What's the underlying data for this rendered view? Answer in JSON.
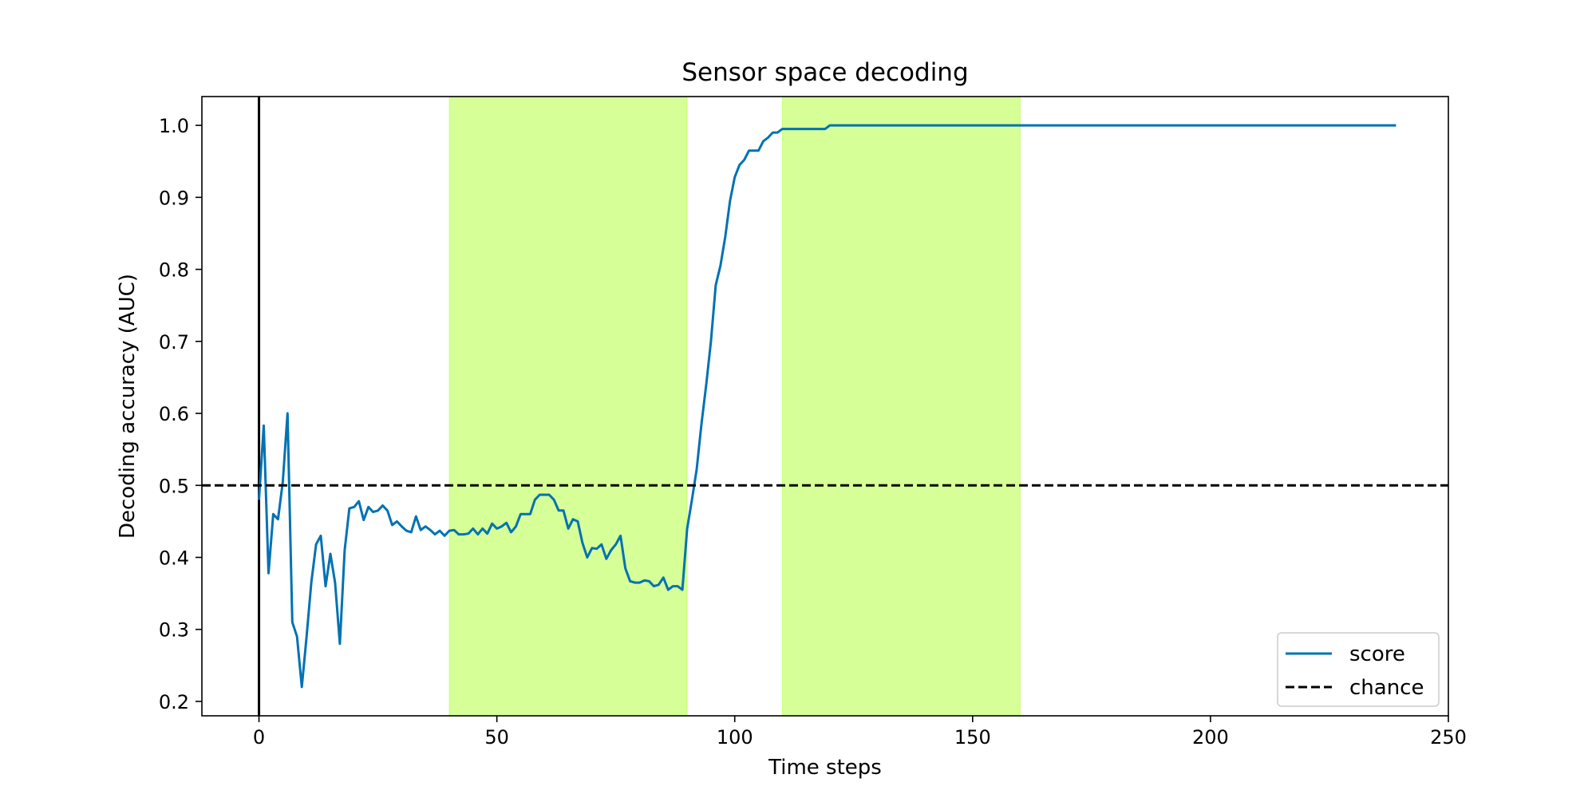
{
  "chart_data": {
    "type": "line",
    "title": "Sensor space decoding",
    "xlabel": "Time steps",
    "ylabel": "Decoding accuracy (AUC)",
    "xlim": [
      -12,
      250
    ],
    "ylim": [
      0.18,
      1.04
    ],
    "xticks": [
      0,
      50,
      100,
      150,
      200,
      250
    ],
    "yticks": [
      0.2,
      0.3,
      0.4,
      0.5,
      0.6,
      0.7,
      0.8,
      0.9,
      1.0
    ],
    "grid": false,
    "legend_position": "lower right",
    "shaded_regions": [
      [
        40,
        90
      ],
      [
        110,
        160
      ]
    ],
    "vertical_line_x": 0,
    "series": [
      {
        "name": "score",
        "color": "#0072b2",
        "style": "solid",
        "x": [
          0,
          1,
          2,
          3,
          4,
          5,
          6,
          7,
          8,
          9,
          10,
          11,
          12,
          13,
          14,
          15,
          16,
          17,
          18,
          19,
          20,
          21,
          22,
          23,
          24,
          25,
          26,
          27,
          28,
          29,
          30,
          31,
          32,
          33,
          34,
          35,
          36,
          37,
          38,
          39,
          40,
          41,
          42,
          43,
          44,
          45,
          46,
          47,
          48,
          49,
          50,
          51,
          52,
          53,
          54,
          55,
          56,
          57,
          58,
          59,
          60,
          61,
          62,
          63,
          64,
          65,
          66,
          67,
          68,
          69,
          70,
          71,
          72,
          73,
          74,
          75,
          76,
          77,
          78,
          79,
          80,
          81,
          82,
          83,
          84,
          85,
          86,
          87,
          88,
          89,
          90,
          91,
          92,
          93,
          94,
          95,
          96,
          97,
          98,
          99,
          100,
          101,
          102,
          103,
          104,
          105,
          106,
          107,
          108,
          109,
          110,
          115,
          119,
          120,
          239
        ],
        "y": [
          0.48,
          0.583,
          0.378,
          0.46,
          0.453,
          0.505,
          0.6,
          0.31,
          0.29,
          0.22,
          0.29,
          0.365,
          0.418,
          0.43,
          0.36,
          0.405,
          0.365,
          0.28,
          0.41,
          0.468,
          0.47,
          0.478,
          0.452,
          0.47,
          0.463,
          0.465,
          0.472,
          0.465,
          0.445,
          0.45,
          0.443,
          0.437,
          0.435,
          0.457,
          0.438,
          0.443,
          0.438,
          0.432,
          0.437,
          0.43,
          0.437,
          0.438,
          0.432,
          0.432,
          0.433,
          0.44,
          0.432,
          0.44,
          0.433,
          0.447,
          0.44,
          0.443,
          0.448,
          0.435,
          0.443,
          0.46,
          0.46,
          0.46,
          0.48,
          0.487,
          0.487,
          0.487,
          0.48,
          0.465,
          0.465,
          0.44,
          0.453,
          0.45,
          0.42,
          0.4,
          0.413,
          0.412,
          0.418,
          0.398,
          0.41,
          0.418,
          0.43,
          0.385,
          0.367,
          0.365,
          0.365,
          0.368,
          0.367,
          0.36,
          0.362,
          0.372,
          0.355,
          0.36,
          0.36,
          0.355,
          0.44,
          0.48,
          0.522,
          0.585,
          0.64,
          0.7,
          0.778,
          0.805,
          0.845,
          0.895,
          0.928,
          0.945,
          0.952,
          0.965,
          0.965,
          0.965,
          0.978,
          0.983,
          0.99,
          0.99,
          0.995,
          0.995,
          0.995,
          1.0,
          1.0
        ]
      },
      {
        "name": "chance",
        "color": "#000000",
        "style": "dashed",
        "value": 0.5
      }
    ]
  }
}
